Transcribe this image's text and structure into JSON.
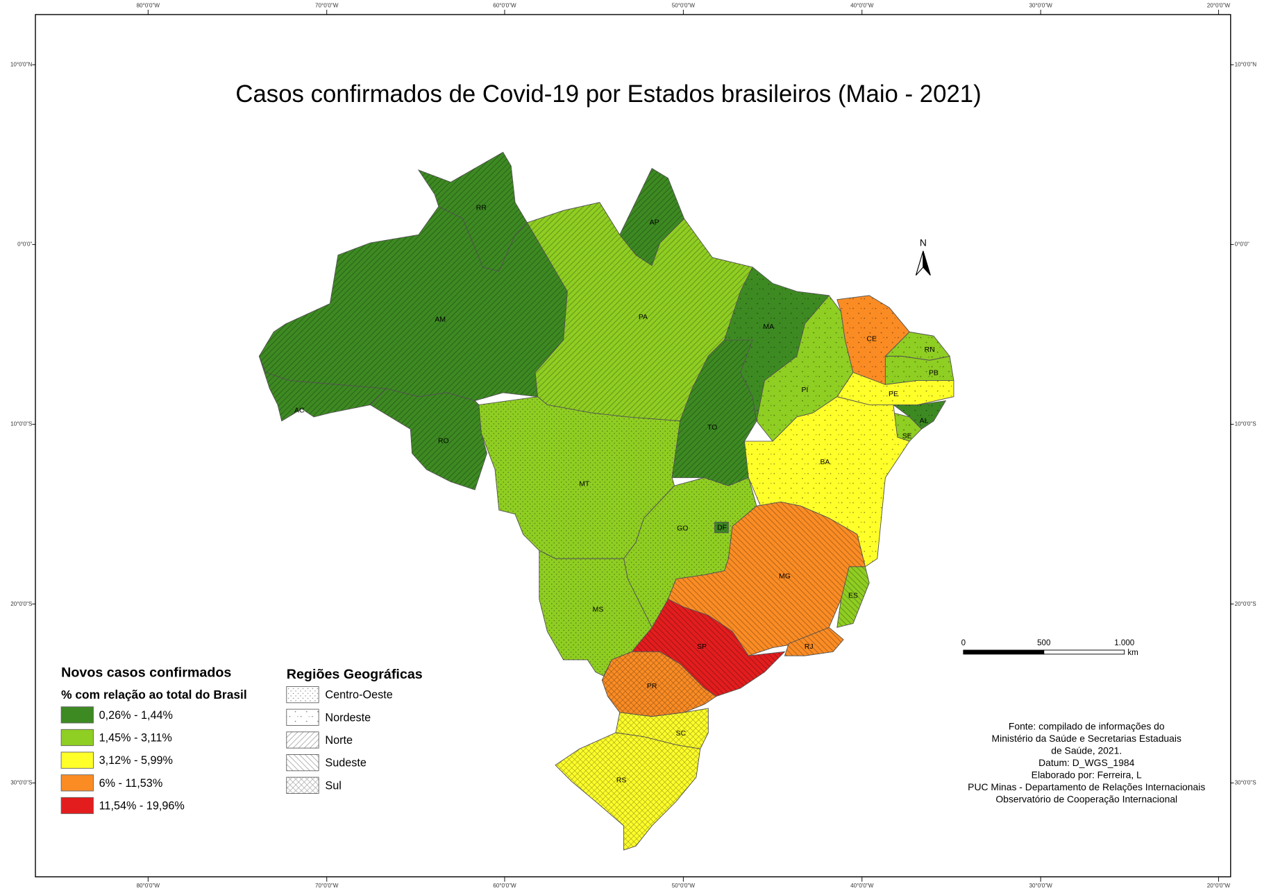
{
  "title": "Casos confirmados de Covid-19 por Estados brasileiros (Maio - 2021)",
  "graticule": {
    "longitudes": [
      "80°0'0\"W",
      "70°0'0\"W",
      "60°0'0\"W",
      "50°0'0\"W",
      "40°0'0\"W",
      "30°0'0\"W",
      "20°0'0\"W"
    ],
    "latitudes": [
      "10°0'0\"N",
      "0°0'0\"",
      "10°0'0\"S",
      "20°0'0\"S",
      "30°0'0\"S"
    ]
  },
  "north": "N",
  "classes_legend": {
    "title": "Novos casos confirmados",
    "subtitle": "% com relação ao total do Brasil",
    "items": [
      {
        "label": "0,26% - 1,44%",
        "color": "#3d8a22"
      },
      {
        "label": "1,45% - 3,11%",
        "color": "#8fce22"
      },
      {
        "label": "3,12% - 5,99%",
        "color": "#ffff2a"
      },
      {
        "label": "6% - 11,53%",
        "color": "#fb8c24"
      },
      {
        "label": "11,54% - 19,96%",
        "color": "#e31d1e"
      }
    ]
  },
  "regions_legend": {
    "title": "Regiões Geográficas",
    "items": [
      "Centro-Oeste",
      "Nordeste",
      "Norte",
      "Sudeste",
      "Sul"
    ]
  },
  "states": [
    {
      "label": "AC",
      "class": 0,
      "region": 2
    },
    {
      "label": "AM",
      "class": 0,
      "region": 2
    },
    {
      "label": "RR",
      "class": 0,
      "region": 2
    },
    {
      "label": "RO",
      "class": 0,
      "region": 2
    },
    {
      "label": "AP",
      "class": 0,
      "region": 2
    },
    {
      "label": "PA",
      "class": 1,
      "region": 2
    },
    {
      "label": "MT",
      "class": 1,
      "region": 0
    },
    {
      "label": "TO",
      "class": 0,
      "region": 2
    },
    {
      "label": "MA",
      "class": 0,
      "region": 1
    },
    {
      "label": "PI",
      "class": 1,
      "region": 1
    },
    {
      "label": "CE",
      "class": 3,
      "region": 1
    },
    {
      "label": "RN",
      "class": 1,
      "region": 1
    },
    {
      "label": "PB",
      "class": 1,
      "region": 1
    },
    {
      "label": "PE",
      "class": 2,
      "region": 1
    },
    {
      "label": "AL",
      "class": 0,
      "region": 1
    },
    {
      "label": "SE",
      "class": 1,
      "region": 1
    },
    {
      "label": "BA",
      "class": 2,
      "region": 1
    },
    {
      "label": "MG",
      "class": 3,
      "region": 3
    },
    {
      "label": "ES",
      "class": 1,
      "region": 3
    },
    {
      "label": "RJ",
      "class": 3,
      "region": 3
    },
    {
      "label": "SP",
      "class": 4,
      "region": 3
    },
    {
      "label": "GO",
      "class": 1,
      "region": 0
    },
    {
      "label": "DF",
      "class": 0,
      "region": 0
    },
    {
      "label": "MS",
      "class": 1,
      "region": 0
    },
    {
      "label": "PR",
      "class": 3,
      "region": 4
    },
    {
      "label": "SC",
      "class": 2,
      "region": 4
    },
    {
      "label": "RS",
      "class": 2,
      "region": 4
    }
  ],
  "scale_bar": {
    "labels": [
      "0",
      "500",
      "1.000"
    ],
    "unit": "km"
  },
  "source": [
    "Fonte: compilado de informações do",
    "Ministério da Saúde e Secretarias Estaduais",
    "de Saúde, 2021.",
    "Datum: D_WGS_1984",
    "Elaborado por: Ferreira, L",
    "PUC Minas - Departamento de Relações Internacionais",
    "Observatório de Cooperação Internacional"
  ]
}
